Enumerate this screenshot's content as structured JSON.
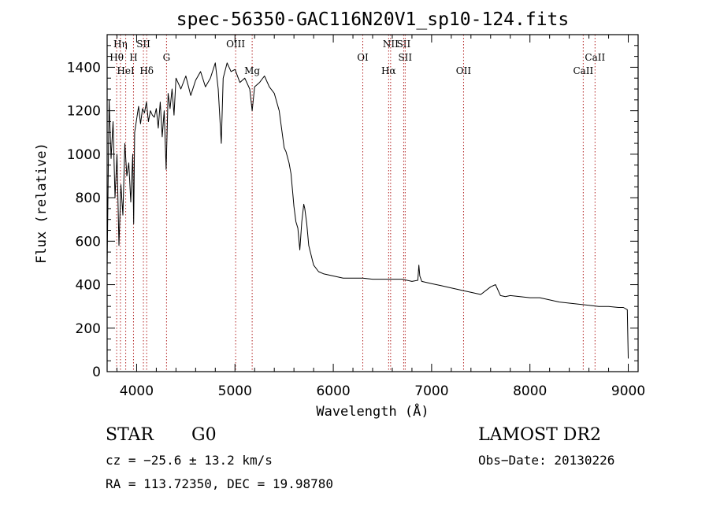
{
  "chart_data": {
    "type": "line",
    "title": "spec-56350-GAC116N20V1_sp10-124.fits",
    "xlabel": "Wavelength (Å)",
    "ylabel": "Flux (relative)",
    "xlim": [
      3700,
      9100
    ],
    "ylim": [
      0,
      1550
    ],
    "xticks": [
      4000,
      5000,
      6000,
      7000,
      8000,
      9000
    ],
    "yticks": [
      0,
      200,
      400,
      600,
      800,
      1000,
      1200,
      1400
    ],
    "grid": false,
    "line_color": "#000000",
    "marker_color": "#b22222",
    "series": [
      {
        "x": [
          3700,
          3720,
          3740,
          3760,
          3780,
          3800,
          3820,
          3840,
          3860,
          3880,
          3900,
          3920,
          3940,
          3960,
          3970,
          3980,
          4000,
          4020,
          4040,
          4060,
          4080,
          4100,
          4120,
          4140,
          4160,
          4180,
          4200,
          4220,
          4240,
          4260,
          4280,
          4300,
          4320,
          4340,
          4360,
          4380,
          4400,
          4450,
          4500,
          4550,
          4600,
          4650,
          4700,
          4750,
          4800,
          4830,
          4861,
          4880,
          4920,
          4960,
          5000,
          5050,
          5100,
          5150,
          5175,
          5200,
          5250,
          5300,
          5350,
          5400,
          5450,
          5500,
          5520,
          5550,
          5570,
          5590,
          5600,
          5620,
          5640,
          5660,
          5680,
          5700,
          5710,
          5730,
          5750,
          5800,
          5850,
          5900,
          6000,
          6100,
          6200,
          6300,
          6400,
          6500,
          6563,
          6600,
          6700,
          6800,
          6860,
          6870,
          6880,
          6900,
          7000,
          7100,
          7200,
          7300,
          7400,
          7500,
          7600,
          7650,
          7700,
          7750,
          7800,
          7900,
          8000,
          8100,
          8200,
          8300,
          8400,
          8500,
          8600,
          8700,
          8800,
          8900,
          8950,
          8990,
          9000
        ],
        "y": [
          480,
          1250,
          980,
          1150,
          800,
          1000,
          580,
          860,
          720,
          1050,
          900,
          960,
          780,
          1000,
          680,
          1100,
          1160,
          1220,
          1140,
          1210,
          1190,
          1240,
          1150,
          1200,
          1180,
          1170,
          1210,
          1120,
          1240,
          1080,
          1200,
          930,
          1280,
          1210,
          1300,
          1180,
          1350,
          1300,
          1360,
          1270,
          1340,
          1380,
          1310,
          1350,
          1420,
          1300,
          1050,
          1350,
          1420,
          1380,
          1390,
          1330,
          1350,
          1300,
          1200,
          1310,
          1330,
          1360,
          1310,
          1280,
          1200,
          1030,
          1010,
          960,
          910,
          810,
          760,
          690,
          660,
          560,
          690,
          770,
          750,
          680,
          580,
          490,
          460,
          450,
          440,
          430,
          430,
          430,
          425,
          425,
          425,
          425,
          425,
          415,
          420,
          490,
          440,
          415,
          405,
          395,
          385,
          375,
          365,
          355,
          390,
          400,
          350,
          345,
          350,
          345,
          340,
          340,
          330,
          320,
          315,
          310,
          305,
          300,
          300,
          295,
          295,
          285,
          60
        ]
      }
    ],
    "line_markers": [
      {
        "label": "Hη",
        "x": 3835,
        "row": 1
      },
      {
        "label": "Hθ",
        "x": 3797,
        "row": 2
      },
      {
        "label": "HeI",
        "x": 3889,
        "row": 3
      },
      {
        "label": "SII",
        "x": 4069,
        "row": 1
      },
      {
        "label": "H",
        "x": 3968,
        "row": 2
      },
      {
        "label": "Hδ",
        "x": 4102,
        "row": 3
      },
      {
        "label": "G",
        "x": 4304,
        "row": 2
      },
      {
        "label": "OIII",
        "x": 5007,
        "row": 1
      },
      {
        "label": "Mg",
        "x": 5175,
        "row": 3
      },
      {
        "label": "OI",
        "x": 6300,
        "row": 2
      },
      {
        "label": "NII",
        "x": 6583,
        "row": 1
      },
      {
        "label": "Hα",
        "x": 6563,
        "row": 3
      },
      {
        "label": "SII",
        "x": 6716,
        "row": 1
      },
      {
        "label": "SII",
        "x": 6731,
        "row": 2
      },
      {
        "label": "OII",
        "x": 7325,
        "row": 3
      },
      {
        "label": "CaII",
        "x": 8542,
        "row": 3
      },
      {
        "label": "CaII",
        "x": 8662,
        "row": 2
      }
    ]
  },
  "info": {
    "class_label": "STAR",
    "subclass_label": "G0",
    "survey_label": "LAMOST DR2",
    "cz_text": "cz = −25.6 ± 13.2 km/s",
    "obs_date_text": "Obs−Date: 20130226",
    "radec_text": "RA = 113.72350, DEC =  19.98780"
  }
}
